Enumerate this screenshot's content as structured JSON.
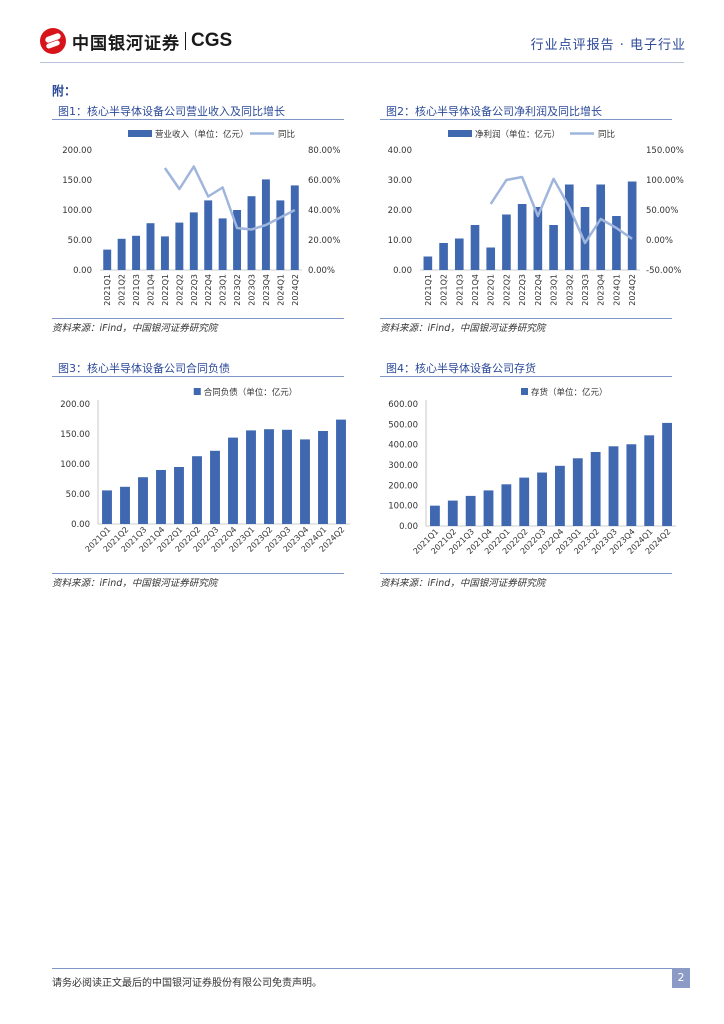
{
  "header": {
    "logo_cn": "中国银河证券",
    "logo_en": "CGS",
    "report_type": "行业点评报告 · 电子行业"
  },
  "appendix_label": "附：",
  "figures": [
    {
      "title": "图1：核心半导体设备公司营业收入及同比增长",
      "source": "资料来源：iFind，中国银河证券研究院"
    },
    {
      "title": "图2：核心半导体设备公司净利润及同比增长",
      "source": "资料来源：iFind，中国银河证券研究院"
    },
    {
      "title": "图3：核心半导体设备公司合同负债",
      "source": "资料来源：iFind，中国银河证券研究院"
    },
    {
      "title": "图4：核心半导体设备公司存货",
      "source": "资料来源：iFind，中国银河证券研究院"
    }
  ],
  "chart_data": [
    {
      "type": "bar",
      "categories": [
        "2021Q1",
        "2021Q2",
        "2021Q3",
        "2021Q4",
        "2022Q1",
        "2022Q2",
        "2022Q3",
        "2022Q4",
        "2023Q1",
        "2023Q2",
        "2023Q3",
        "2023Q4",
        "2024Q1",
        "2024Q2"
      ],
      "series": [
        {
          "name": "营业收入（单位：亿元）",
          "type": "bar",
          "axis": "left",
          "values": [
            34,
            52,
            57,
            78,
            56,
            79,
            96,
            116,
            86,
            100,
            123,
            151,
            116,
            141
          ]
        },
        {
          "name": "同比",
          "type": "line",
          "axis": "right",
          "values": [
            null,
            null,
            null,
            null,
            68,
            54,
            69,
            49,
            55,
            28,
            27,
            30,
            35,
            40
          ]
        }
      ],
      "ylim": [
        0,
        200
      ],
      "yticks": [
        "0.00",
        "50.00",
        "100.00",
        "150.00",
        "200.00"
      ],
      "y2lim": [
        0,
        80
      ],
      "y2ticks": [
        "0.00%",
        "20.00%",
        "40.00%",
        "60.00%",
        "80.00%"
      ],
      "legend": "top",
      "colors": {
        "bar": "#4068b0",
        "line": "#9fb5dc"
      }
    },
    {
      "type": "bar",
      "categories": [
        "2021Q1",
        "2021Q2",
        "2021Q3",
        "2021Q4",
        "2022Q1",
        "2022Q2",
        "2022Q3",
        "2022Q4",
        "2023Q1",
        "2023Q2",
        "2023Q3",
        "2023Q4",
        "2024Q1",
        "2024Q2"
      ],
      "series": [
        {
          "name": "净利润（单位：亿元）",
          "type": "bar",
          "axis": "left",
          "values": [
            4.5,
            9,
            10.5,
            15,
            7.5,
            18.5,
            22,
            21,
            15,
            28.5,
            21,
            28.5,
            18,
            29.5
          ]
        },
        {
          "name": "同比",
          "type": "line",
          "axis": "right",
          "values": [
            null,
            null,
            null,
            null,
            60,
            100,
            105,
            40,
            102,
            55,
            -5,
            35,
            20,
            2
          ]
        }
      ],
      "ylim": [
        0,
        40
      ],
      "yticks": [
        "0.00",
        "10.00",
        "20.00",
        "30.00",
        "40.00"
      ],
      "y2lim": [
        -50,
        150
      ],
      "y2ticks": [
        "-50.00%",
        "0.00%",
        "50.00%",
        "100.00%",
        "150.00%"
      ],
      "legend": "top",
      "colors": {
        "bar": "#4068b0",
        "line": "#9fb5dc"
      }
    },
    {
      "type": "bar",
      "categories": [
        "2021Q1",
        "2021Q2",
        "2021Q3",
        "2021Q4",
        "2022Q1",
        "2022Q2",
        "2022Q3",
        "2022Q4",
        "2023Q1",
        "2023Q2",
        "2023Q3",
        "2023Q4",
        "2024Q1",
        "2024Q2"
      ],
      "series": [
        {
          "name": "合同负债（单位：亿元）",
          "type": "bar",
          "axis": "left",
          "values": [
            56,
            62,
            78,
            90,
            95,
            113,
            122,
            144,
            156,
            158,
            157,
            141,
            155,
            174
          ]
        }
      ],
      "ylim": [
        0,
        200
      ],
      "yticks": [
        "0.00",
        "50.00",
        "100.00",
        "150.00",
        "200.00"
      ],
      "legend": "top",
      "colors": {
        "bar": "#4068b0"
      }
    },
    {
      "type": "bar",
      "categories": [
        "2021Q1",
        "2021Q2",
        "2021Q3",
        "2021Q4",
        "2022Q1",
        "2022Q2",
        "2022Q3",
        "2022Q4",
        "2023Q1",
        "2023Q2",
        "2023Q3",
        "2023Q4",
        "2024Q1",
        "2024Q2"
      ],
      "series": [
        {
          "name": "存货（单位：亿元）",
          "type": "bar",
          "axis": "left",
          "values": [
            100,
            125,
            148,
            175,
            205,
            238,
            263,
            296,
            333,
            364,
            392,
            402,
            446,
            507
          ]
        }
      ],
      "ylim": [
        0,
        600
      ],
      "yticks": [
        "0.00",
        "100.00",
        "200.00",
        "300.00",
        "400.00",
        "500.00",
        "600.00"
      ],
      "legend": "top",
      "colors": {
        "bar": "#4068b0"
      }
    }
  ],
  "footer": {
    "disclaimer": "请务必阅读正文最后的中国银河证券股份有限公司免责声明。",
    "page_number": "2"
  }
}
